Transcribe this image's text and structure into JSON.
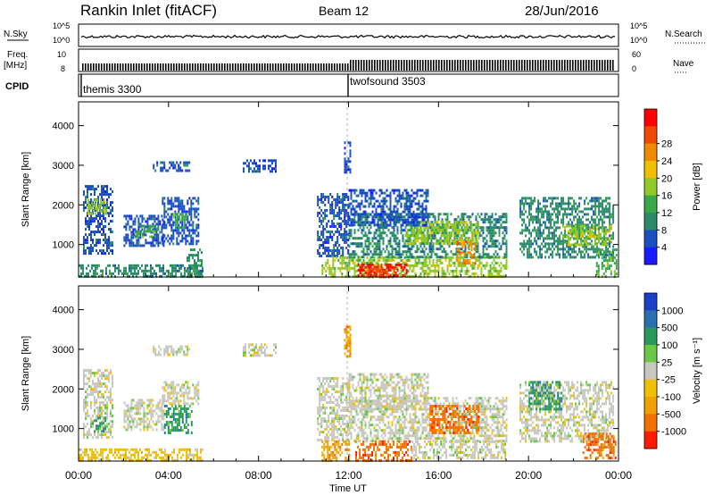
{
  "header": {
    "title": "Rankin Inlet (fitACF)",
    "beam": "Beam 12",
    "date": "28/Jun/2016"
  },
  "ancillary": {
    "nsky_label": "N.Sky",
    "nsearch_label": "N.Search",
    "nsky_ticks": [
      "10^5",
      "10^0"
    ],
    "freq_label_1": "Freq.",
    "freq_label_2": "[MHz]",
    "freq_ticks": [
      "10",
      "8"
    ],
    "nave_label": "Nave",
    "nave_ticks": [
      "60",
      "0"
    ],
    "cpid_label": "CPID",
    "cpid_modes": [
      {
        "name": "themis 3300",
        "start_hour": 0
      },
      {
        "name": "twofsound 3503",
        "start_hour": 12
      }
    ]
  },
  "x_axis": {
    "label": "Time UT",
    "ticks": [
      "00:00",
      "04:00",
      "08:00",
      "12:00",
      "16:00",
      "20:00",
      "00:00"
    ]
  },
  "chart_data": [
    {
      "type": "heatmap",
      "name": "power",
      "ylabel": "Slant Range [km]",
      "xlabel": "",
      "xlim": [
        0,
        24
      ],
      "ylim": [
        180,
        4600
      ],
      "yticks": [
        1000,
        2000,
        3000,
        4000
      ],
      "colorbar": {
        "label": "Power [dB]",
        "ticks": [
          "4",
          "8",
          "12",
          "16",
          "20",
          "24",
          "28"
        ],
        "colors": [
          "#1a1aff",
          "#1a4fc0",
          "#2a8a6a",
          "#3aa84a",
          "#90c828",
          "#f0c000",
          "#f08a00",
          "#f04a00",
          "#ff0000"
        ]
      },
      "regions": [
        {
          "t0": 0.2,
          "t1": 1.5,
          "r0": 750,
          "r1": 2500,
          "level": 1
        },
        {
          "t0": 0.4,
          "t1": 1.2,
          "r0": 1750,
          "r1": 2150,
          "level": 4
        },
        {
          "t0": 2.0,
          "t1": 3.8,
          "r0": 1000,
          "r1": 1750,
          "level": 1
        },
        {
          "t0": 2.5,
          "t1": 3.5,
          "r0": 1200,
          "r1": 1500,
          "level": 3
        },
        {
          "t0": 3.7,
          "t1": 5.3,
          "r0": 1000,
          "r1": 2200,
          "level": 1
        },
        {
          "t0": 4.2,
          "t1": 4.8,
          "r0": 1450,
          "r1": 1800,
          "level": 3
        },
        {
          "t0": 4.8,
          "t1": 5.5,
          "r0": 200,
          "r1": 900,
          "level": 2
        },
        {
          "t0": 0.0,
          "t1": 5.5,
          "r0": 200,
          "r1": 500,
          "level": 2
        },
        {
          "t0": 10.6,
          "t1": 12.0,
          "r0": 700,
          "r1": 2300,
          "level": 1
        },
        {
          "t0": 10.8,
          "t1": 12.0,
          "r0": 200,
          "r1": 700,
          "level": 4
        },
        {
          "t0": 11.8,
          "t1": 12.1,
          "r0": 2800,
          "r1": 3600,
          "level": 1
        },
        {
          "t0": 12.0,
          "t1": 19.0,
          "r0": 200,
          "r1": 700,
          "level": 4
        },
        {
          "t0": 12.4,
          "t1": 14.6,
          "r0": 200,
          "r1": 520,
          "level": 8
        },
        {
          "t0": 12.8,
          "t1": 14.0,
          "r0": 200,
          "r1": 420,
          "level": 7
        },
        {
          "t0": 12.0,
          "t1": 19.0,
          "r0": 700,
          "r1": 1800,
          "level": 2
        },
        {
          "t0": 14.5,
          "t1": 17.8,
          "r0": 1000,
          "r1": 1600,
          "level": 4
        },
        {
          "t0": 16.8,
          "t1": 17.6,
          "r0": 500,
          "r1": 1100,
          "level": 6
        },
        {
          "t0": 12.0,
          "t1": 15.5,
          "r0": 1500,
          "r1": 2400,
          "level": 1
        },
        {
          "t0": 19.6,
          "t1": 23.8,
          "r0": 700,
          "r1": 2200,
          "level": 2
        },
        {
          "t0": 21.5,
          "t1": 23.7,
          "r0": 1000,
          "r1": 1500,
          "level": 4
        },
        {
          "t0": 23.0,
          "t1": 23.9,
          "r0": 200,
          "r1": 900,
          "level": 3
        },
        {
          "t0": 7.3,
          "t1": 8.8,
          "r0": 2850,
          "r1": 3150,
          "level": 1
        },
        {
          "t0": 3.3,
          "t1": 4.9,
          "r0": 2850,
          "r1": 3100,
          "level": 1
        }
      ]
    },
    {
      "type": "heatmap",
      "name": "velocity",
      "ylabel": "Slant Range [km]",
      "xlabel": "",
      "xlim": [
        0,
        24
      ],
      "ylim": [
        180,
        4600
      ],
      "yticks": [
        1000,
        2000,
        3000,
        4000
      ],
      "colorbar": {
        "label": "Velocity [m s⁻¹]",
        "ticks": [
          "1000",
          "500",
          "100",
          "25",
          "-25",
          "-100",
          "-500",
          "-1000"
        ],
        "colors": [
          "#1a40c8",
          "#2a70b0",
          "#2a9a5a",
          "#6ac848",
          "#c8c8c0",
          "#f0c000",
          "#f0a000",
          "#f07000",
          "#ff1a00"
        ]
      },
      "regions": [
        {
          "t0": 0.2,
          "t1": 1.5,
          "r0": 750,
          "r1": 2500,
          "level": 4
        },
        {
          "t0": 0.6,
          "t1": 1.2,
          "r0": 900,
          "r1": 1300,
          "level": 2
        },
        {
          "t0": 2.0,
          "t1": 3.8,
          "r0": 1000,
          "r1": 1750,
          "level": 4
        },
        {
          "t0": 3.8,
          "t1": 5.0,
          "r0": 900,
          "r1": 1600,
          "level": 2
        },
        {
          "t0": 3.7,
          "t1": 5.3,
          "r0": 1600,
          "r1": 2200,
          "level": 4
        },
        {
          "t0": 0.0,
          "t1": 5.5,
          "r0": 200,
          "r1": 500,
          "level": 5
        },
        {
          "t0": 10.6,
          "t1": 12.0,
          "r0": 700,
          "r1": 2300,
          "level": 4
        },
        {
          "t0": 10.8,
          "t1": 12.0,
          "r0": 200,
          "r1": 700,
          "level": 6
        },
        {
          "t0": 11.8,
          "t1": 12.1,
          "r0": 2800,
          "r1": 3600,
          "level": 6
        },
        {
          "t0": 12.0,
          "t1": 19.0,
          "r0": 700,
          "r1": 1800,
          "level": 4
        },
        {
          "t0": 12.3,
          "t1": 14.8,
          "r0": 200,
          "r1": 700,
          "level": 7
        },
        {
          "t0": 14.8,
          "t1": 19.0,
          "r0": 250,
          "r1": 700,
          "level": 4
        },
        {
          "t0": 15.6,
          "t1": 17.8,
          "r0": 900,
          "r1": 1600,
          "level": 7
        },
        {
          "t0": 12.0,
          "t1": 15.5,
          "r0": 1500,
          "r1": 2400,
          "level": 4
        },
        {
          "t0": 19.6,
          "t1": 23.8,
          "r0": 700,
          "r1": 2200,
          "level": 4
        },
        {
          "t0": 20.0,
          "t1": 21.5,
          "r0": 1500,
          "r1": 2200,
          "level": 2
        },
        {
          "t0": 22.4,
          "t1": 23.9,
          "r0": 250,
          "r1": 900,
          "level": 7
        },
        {
          "t0": 7.3,
          "t1": 8.8,
          "r0": 2850,
          "r1": 3150,
          "level": 4
        },
        {
          "t0": 3.3,
          "t1": 4.9,
          "r0": 2850,
          "r1": 3100,
          "level": 4
        }
      ]
    }
  ]
}
